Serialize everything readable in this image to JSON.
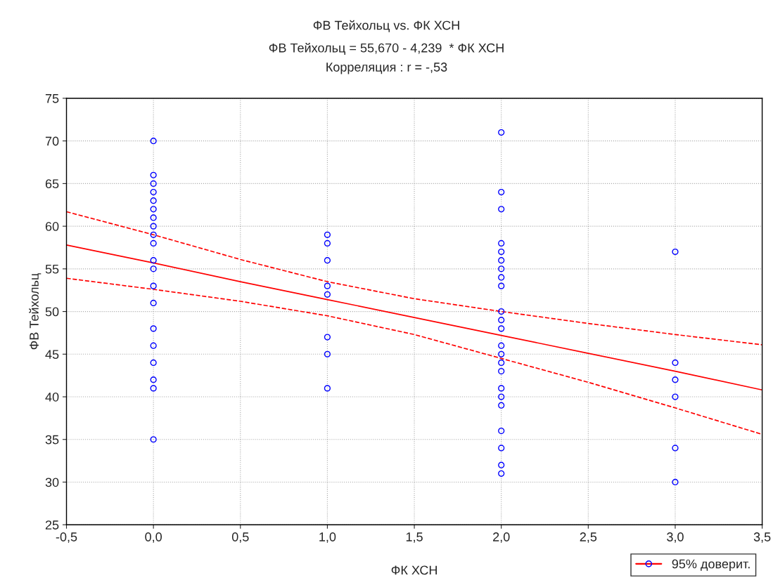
{
  "chart_data": {
    "type": "scatter",
    "title": "ФВ Тейхольц vs. ФК ХСН",
    "subtitle": "ФВ Тейхольц = 55,670 - 4,239  * ФК ХСН\nКорреляция : r = -,53",
    "xlabel": "ФК ХСН",
    "ylabel": "ФВ Тейхольц",
    "xlim": [
      -0.5,
      3.5
    ],
    "xticks": [
      {
        "value": -0.5,
        "label": "-0,5"
      },
      {
        "value": 0,
        "label": "0,0"
      },
      {
        "value": 0.5,
        "label": "0,5"
      },
      {
        "value": 1,
        "label": "1,0"
      },
      {
        "value": 1.5,
        "label": "1,5"
      },
      {
        "value": 2,
        "label": "2,0"
      },
      {
        "value": 2.5,
        "label": "2,5"
      },
      {
        "value": 3,
        "label": "3,0"
      },
      {
        "value": 3.5,
        "label": "3,5"
      }
    ],
    "ylim": [
      25,
      75
    ],
    "yticks": [
      25,
      30,
      35,
      40,
      45,
      50,
      55,
      60,
      65,
      70,
      75
    ],
    "grid": true,
    "legend": "bottom right",
    "series": [
      {
        "marker": "circle",
        "color": "#0000ff",
        "x": [
          0,
          0,
          0,
          0,
          0,
          0,
          0,
          0,
          0,
          0,
          0,
          0,
          0,
          0,
          0,
          0,
          0,
          0,
          0,
          0,
          1,
          1,
          1,
          1,
          1,
          1,
          1,
          1,
          2,
          2,
          2,
          2,
          2,
          2,
          2,
          2,
          2,
          2,
          2,
          2,
          2,
          2,
          2,
          2,
          2,
          2,
          2,
          2,
          2,
          2,
          2,
          3,
          3,
          3,
          3,
          3,
          3
        ],
        "values": [
          70,
          66,
          65,
          64,
          63,
          62,
          61,
          60,
          59,
          58,
          56,
          55,
          53,
          51,
          48,
          46,
          44,
          42,
          41,
          35,
          59,
          58,
          56,
          53,
          52,
          47,
          45,
          41,
          71,
          64,
          62,
          58,
          57,
          56,
          55,
          54,
          53,
          50,
          49,
          48,
          46,
          45,
          44,
          43,
          41,
          40,
          39,
          36,
          34,
          32,
          31,
          57,
          44,
          42,
          40,
          34,
          30
        ]
      },
      {
        "type": "line",
        "marker": "none",
        "line_style": "solid",
        "name": "95% доверит.",
        "color": "#ff0000",
        "x": [
          -0.5,
          0,
          0.5,
          1,
          1.5,
          2,
          2.5,
          3,
          3.5
        ],
        "values": [
          57.8,
          55.7,
          53.5,
          51.4,
          49.3,
          47.2,
          45.1,
          43.0,
          40.8
        ]
      },
      {
        "type": "line",
        "marker": "none",
        "line_style": "dashed",
        "color": "#ff0000",
        "x": [
          -0.5,
          0,
          0.5,
          1,
          1.5,
          2,
          2.5,
          3,
          3.5
        ],
        "values": [
          53.9,
          52.6,
          51.2,
          49.5,
          47.3,
          44.5,
          41.7,
          38.7,
          35.6
        ]
      },
      {
        "type": "line",
        "marker": "none",
        "line_style": "dashed",
        "color": "#ff0000",
        "x": [
          -0.5,
          0,
          0.5,
          1,
          1.5,
          2,
          2.5,
          3,
          3.5
        ],
        "values": [
          61.7,
          59.0,
          56.1,
          53.5,
          51.5,
          50.0,
          48.6,
          47.3,
          46.1
        ]
      }
    ]
  }
}
